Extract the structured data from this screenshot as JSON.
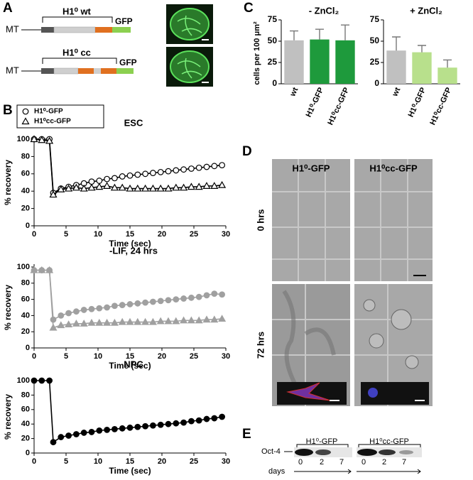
{
  "chart_data": [
    {
      "type": "line",
      "title": "ESC",
      "x_label": "Time (sec)",
      "y_label": "% recovery",
      "legend": true,
      "legend_position": "upper left",
      "x": [
        0,
        1.2,
        2.4,
        3,
        4.2,
        5.4,
        6.6,
        7.8,
        9,
        10.2,
        11.4,
        12.6,
        13.8,
        15,
        16.2,
        17.4,
        18.6,
        19.8,
        21,
        22.2,
        23.4,
        24.6,
        25.8,
        27,
        28.2,
        29.4
      ],
      "series": [
        {
          "name": "H1⁰-GFP",
          "color": "#000000",
          "marker": "circle",
          "marker_fill": "#ffffff",
          "values": [
            100,
            100,
            100,
            38,
            43,
            45,
            47,
            49,
            51,
            52,
            54,
            55,
            57,
            58,
            59,
            60,
            61,
            62,
            63,
            64,
            65,
            66,
            67,
            68,
            69,
            70
          ]
        },
        {
          "name": "H1⁰cc-GFP",
          "color": "#000000",
          "marker": "triangle",
          "marker_fill": "#ffffff",
          "values": [
            100,
            99,
            98,
            36,
            42,
            43,
            44,
            43,
            44,
            45,
            46,
            44,
            44,
            43,
            43,
            43,
            43,
            43,
            43,
            44,
            44,
            45,
            45,
            46,
            46,
            47
          ]
        }
      ],
      "xlim": [
        0,
        30
      ],
      "xticks": [
        0,
        5,
        10,
        15,
        20,
        25,
        30
      ],
      "ylim": [
        0,
        100
      ],
      "yticks": [
        0,
        20,
        40,
        60,
        80,
        100
      ]
    },
    {
      "type": "line",
      "title": "-LIF, 24 hrs",
      "x_label": "Time (sec)",
      "y_label": "% recovery",
      "legend": false,
      "x": [
        0,
        1.2,
        2.4,
        3,
        4.2,
        5.4,
        6.6,
        7.8,
        9,
        10.2,
        11.4,
        12.6,
        13.8,
        15,
        16.2,
        17.4,
        18.6,
        19.8,
        21,
        22.2,
        23.4,
        24.6,
        25.8,
        27,
        28.2,
        29.4
      ],
      "series": [
        {
          "color": "#a0a0a0",
          "marker": "circle",
          "marker_fill": "#a0a0a0",
          "values": [
            96,
            96,
            96,
            35,
            40,
            43,
            45,
            47,
            48,
            49,
            50,
            52,
            53,
            54,
            55,
            56,
            57,
            58,
            59,
            60,
            61,
            62,
            63,
            65,
            67,
            66
          ]
        },
        {
          "color": "#a0a0a0",
          "marker": "triangle",
          "marker_fill": "#a0a0a0",
          "values": [
            96,
            96,
            96,
            25,
            28,
            29,
            30,
            30,
            31,
            31,
            31,
            31,
            32,
            32,
            32,
            32,
            32,
            33,
            33,
            33,
            34,
            34,
            34,
            35,
            35,
            36
          ]
        }
      ],
      "xlim": [
        0,
        30
      ],
      "xticks": [
        0,
        5,
        10,
        15,
        20,
        25,
        30
      ],
      "ylim": [
        0,
        100
      ],
      "yticks": [
        0,
        20,
        40,
        60,
        80,
        100
      ]
    },
    {
      "type": "line",
      "title": "NPC",
      "x_label": "Time (sec)",
      "y_label": "% recovery",
      "legend": false,
      "x": [
        0,
        1.2,
        2.4,
        3,
        4.2,
        5.4,
        6.6,
        7.8,
        9,
        10.2,
        11.4,
        12.6,
        13.8,
        15,
        16.2,
        17.4,
        18.6,
        19.8,
        21,
        22.2,
        23.4,
        24.6,
        25.8,
        27,
        28.2,
        29.4
      ],
      "series": [
        {
          "color": "#000000",
          "marker": "circle",
          "marker_fill": "#000000",
          "values": [
            100,
            100,
            100,
            15,
            22,
            24,
            26,
            28,
            29,
            31,
            32,
            33,
            34,
            35,
            36,
            37,
            38,
            39,
            40,
            41,
            42,
            44,
            45,
            47,
            48,
            50
          ]
        }
      ],
      "xlim": [
        0,
        30
      ],
      "xticks": [
        0,
        5,
        10,
        15,
        20,
        25,
        30
      ],
      "ylim": [
        0,
        100
      ],
      "yticks": [
        0,
        20,
        40,
        60,
        80,
        100
      ]
    },
    {
      "type": "bar",
      "title": "- ZnCl₂",
      "y_label": "cells per 100 μm²",
      "categories": [
        "wt",
        "H1⁰-GFP",
        "H1⁰cc-GFP"
      ],
      "values": [
        51,
        52,
        51
      ],
      "error": [
        11,
        12,
        18
      ],
      "colors": [
        "#c0c0c0",
        "#1e9a3c",
        "#1e9a3c"
      ],
      "ylim": [
        0,
        75
      ],
      "yticks": [
        0,
        25,
        50,
        75
      ]
    },
    {
      "type": "bar",
      "title": "+ ZnCl₂",
      "categories": [
        "wt",
        "H1⁰-GFP",
        "H1⁰cc-GFP"
      ],
      "values": [
        39,
        37,
        19
      ],
      "error": [
        16,
        8,
        9
      ],
      "colors": [
        "#c0c0c0",
        "#b8e08c",
        "#b8e08c"
      ],
      "ylim": [
        0,
        75
      ],
      "yticks": [
        0,
        25,
        50,
        75
      ]
    }
  ],
  "figure": {
    "panel_labels": [
      "A",
      "B",
      "C",
      "D",
      "E"
    ],
    "a": {
      "promoter": "MT",
      "constructs": [
        {
          "name": "H1⁰ wt",
          "tag": "GFP"
        },
        {
          "name": "H1⁰ cc",
          "tag": "GFP"
        }
      ]
    },
    "d": {
      "columns": [
        "H1⁰-GFP",
        "H1⁰cc-GFP"
      ],
      "rows": [
        "0 hrs",
        "72 hrs"
      ]
    },
    "e": {
      "groups": [
        "H1⁰-GFP",
        "H1⁰cc-GFP"
      ],
      "protein": "Oct-4",
      "axis": "days",
      "days": [
        "0",
        "2",
        "7",
        "0",
        "2",
        "7"
      ]
    }
  }
}
